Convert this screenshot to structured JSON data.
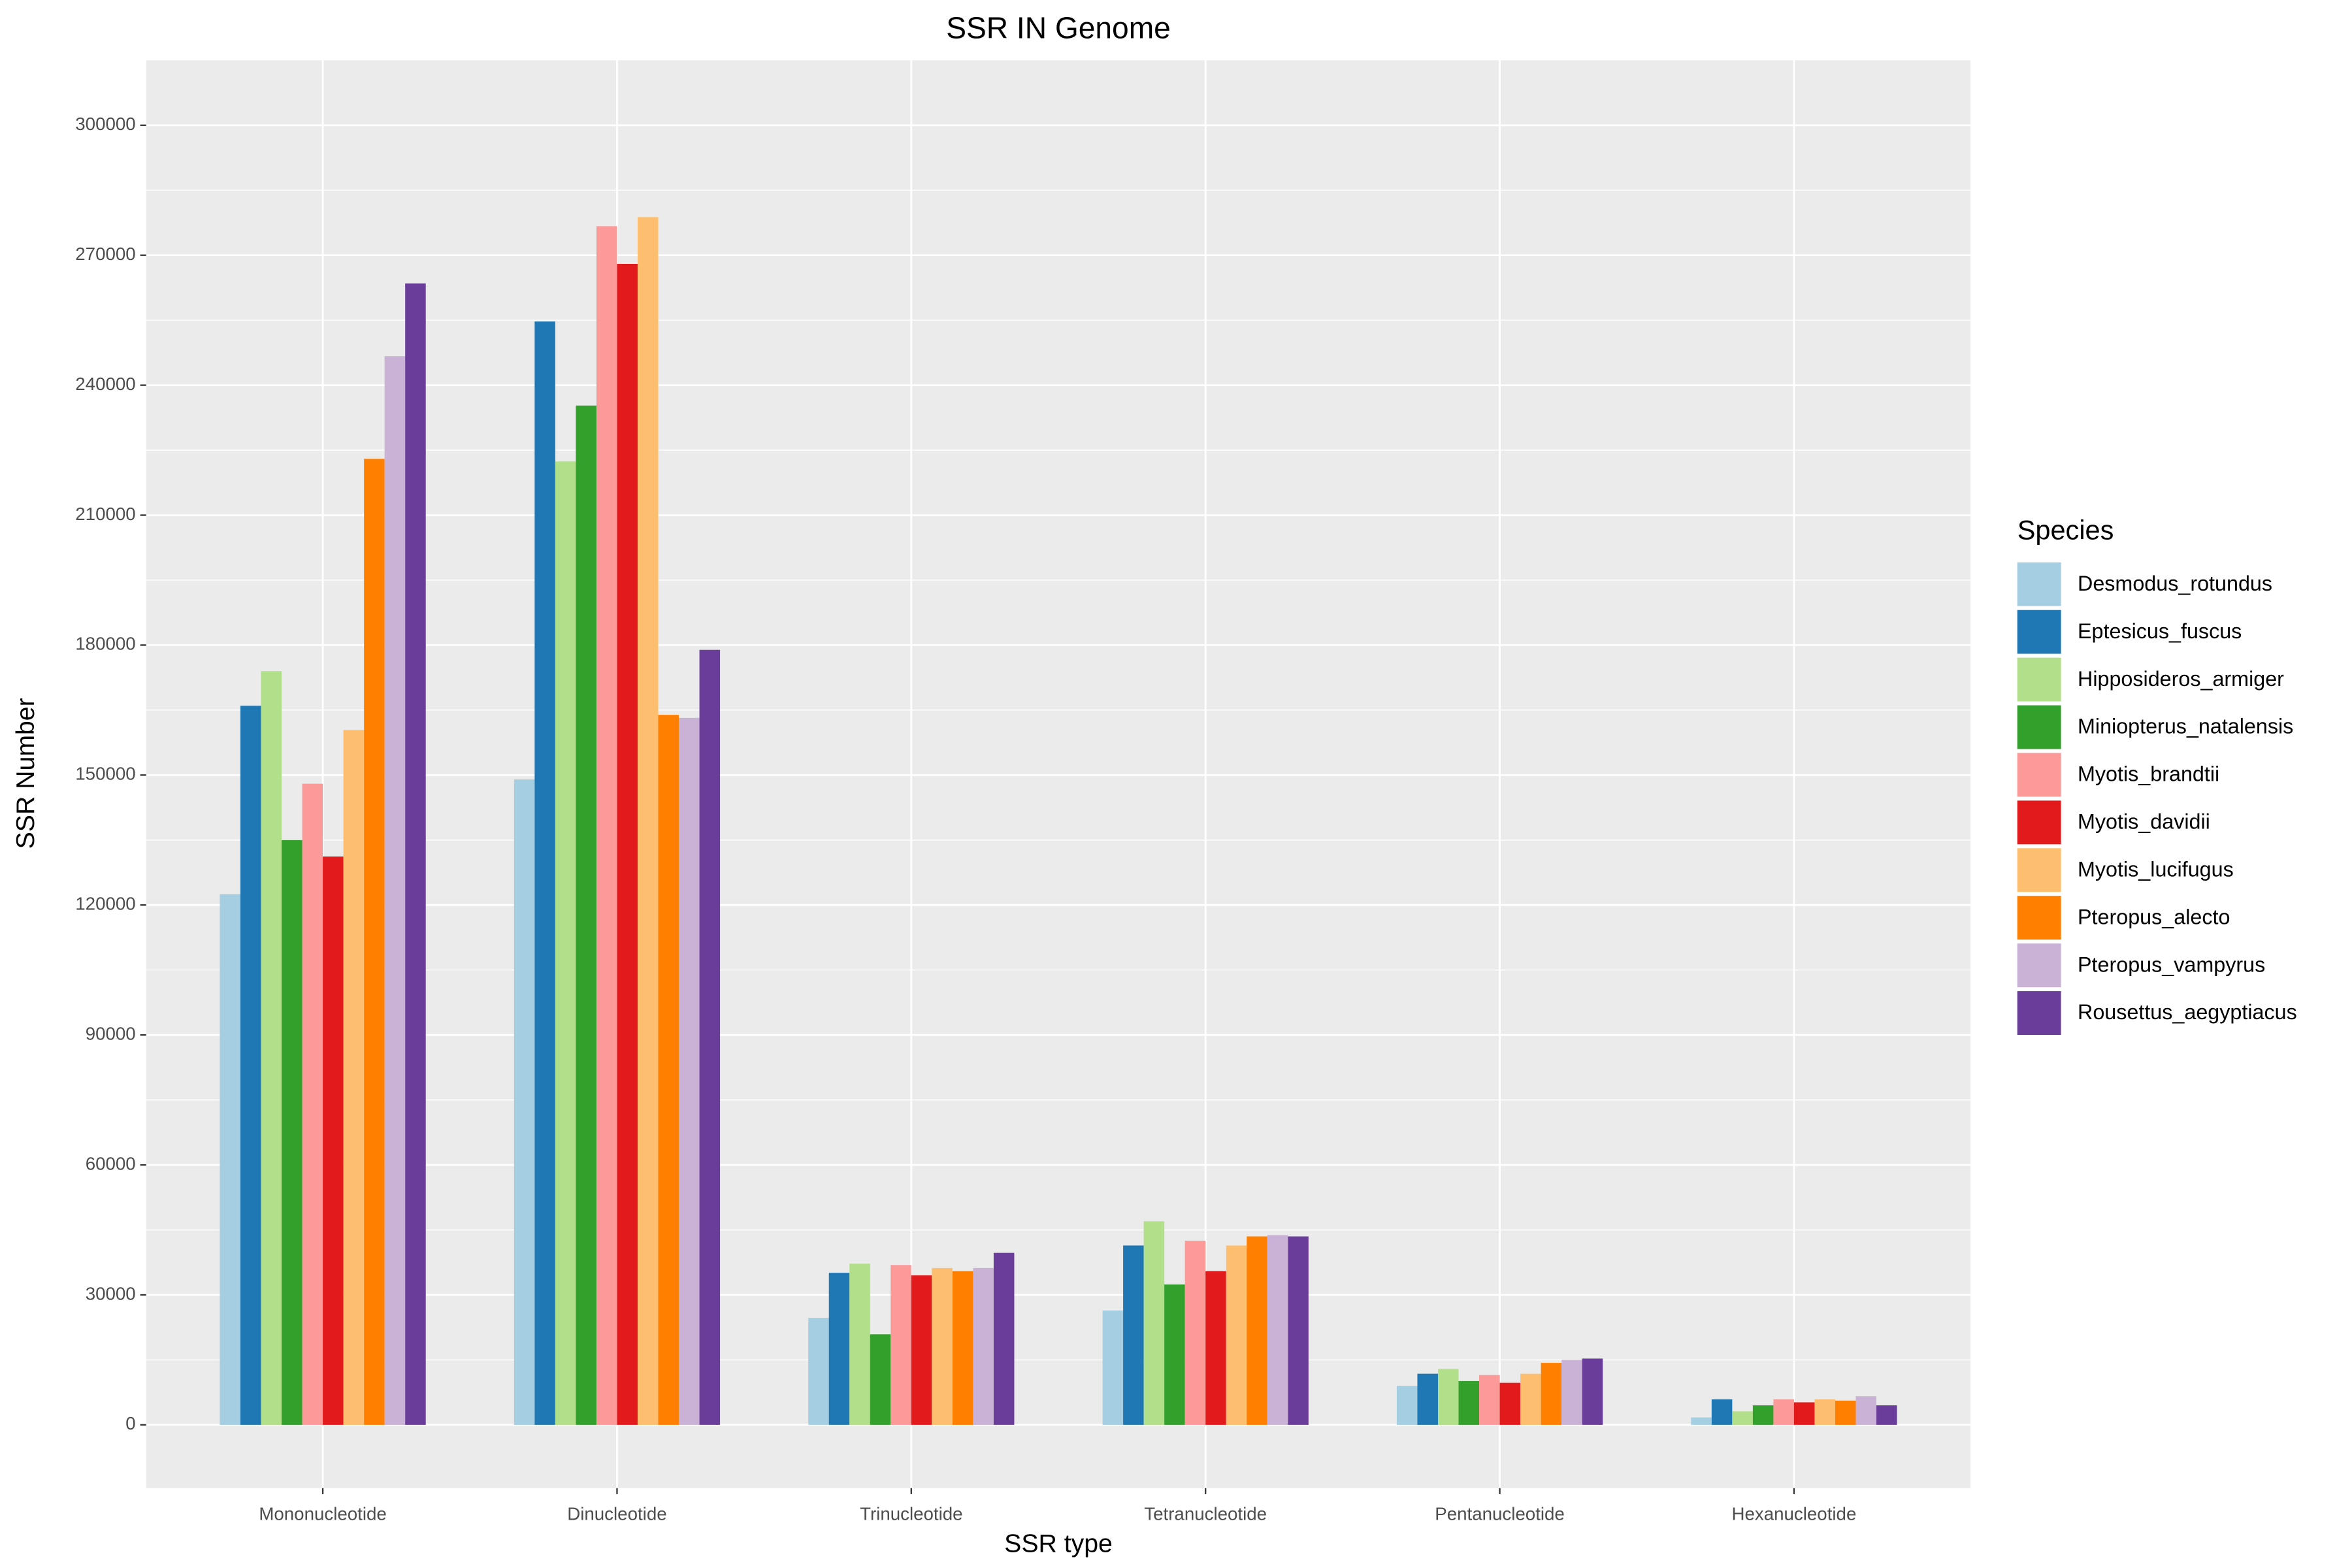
{
  "chart_data": {
    "type": "bar",
    "title": "SSR IN Genome",
    "x_label": "SSR type",
    "y_label": "SSR Number",
    "legend_title": "Species",
    "legend_position": "right",
    "grid": true,
    "categories": [
      "Mononucleotide",
      "Dinucleotide",
      "Trinucleotide",
      "Tetranucleotide",
      "Pentanucleotide",
      "Hexanucleotide"
    ],
    "ylim": [
      -14600,
      315000
    ],
    "yticks": [
      0,
      30000,
      60000,
      90000,
      120000,
      150000,
      180000,
      210000,
      240000,
      270000,
      300000
    ],
    "series": [
      {
        "name": "Desmodus_rotundus",
        "color": "#A6CEE3",
        "values": [
          122500,
          149000,
          24700,
          26400,
          9000,
          1700
        ]
      },
      {
        "name": "Eptesicus_fuscus",
        "color": "#1F78B4",
        "values": [
          166000,
          254700,
          35100,
          41400,
          11800,
          5900
        ]
      },
      {
        "name": "Hipposideros_armiger",
        "color": "#B2DF8A",
        "values": [
          174000,
          222400,
          37200,
          47000,
          12900,
          3100
        ]
      },
      {
        "name": "Miniopterus_natalensis",
        "color": "#33A02C",
        "values": [
          135000,
          235300,
          20900,
          32400,
          10100,
          4500
        ]
      },
      {
        "name": "Myotis_brandtii",
        "color": "#FB9A99",
        "values": [
          148000,
          276700,
          36900,
          42500,
          11500,
          5900
        ]
      },
      {
        "name": "Myotis_davidii",
        "color": "#E31A1C",
        "values": [
          131200,
          268000,
          34500,
          35500,
          9700,
          5200
        ]
      },
      {
        "name": "Myotis_lucifugus",
        "color": "#FDBF6F",
        "values": [
          160400,
          278800,
          36200,
          41400,
          11800,
          5900
        ]
      },
      {
        "name": "Pteropus_alecto",
        "color": "#FF7F00",
        "values": [
          223000,
          163900,
          35500,
          43500,
          14300,
          5600
        ]
      },
      {
        "name": "Pteropus_vampyrus",
        "color": "#CAB2D6",
        "values": [
          246700,
          163200,
          36200,
          43800,
          15000,
          6600
        ]
      },
      {
        "name": "Rousettus_aegyptiacus",
        "color": "#6A3D9A",
        "values": [
          263500,
          178900,
          39700,
          43500,
          15300,
          4500
        ]
      }
    ]
  }
}
